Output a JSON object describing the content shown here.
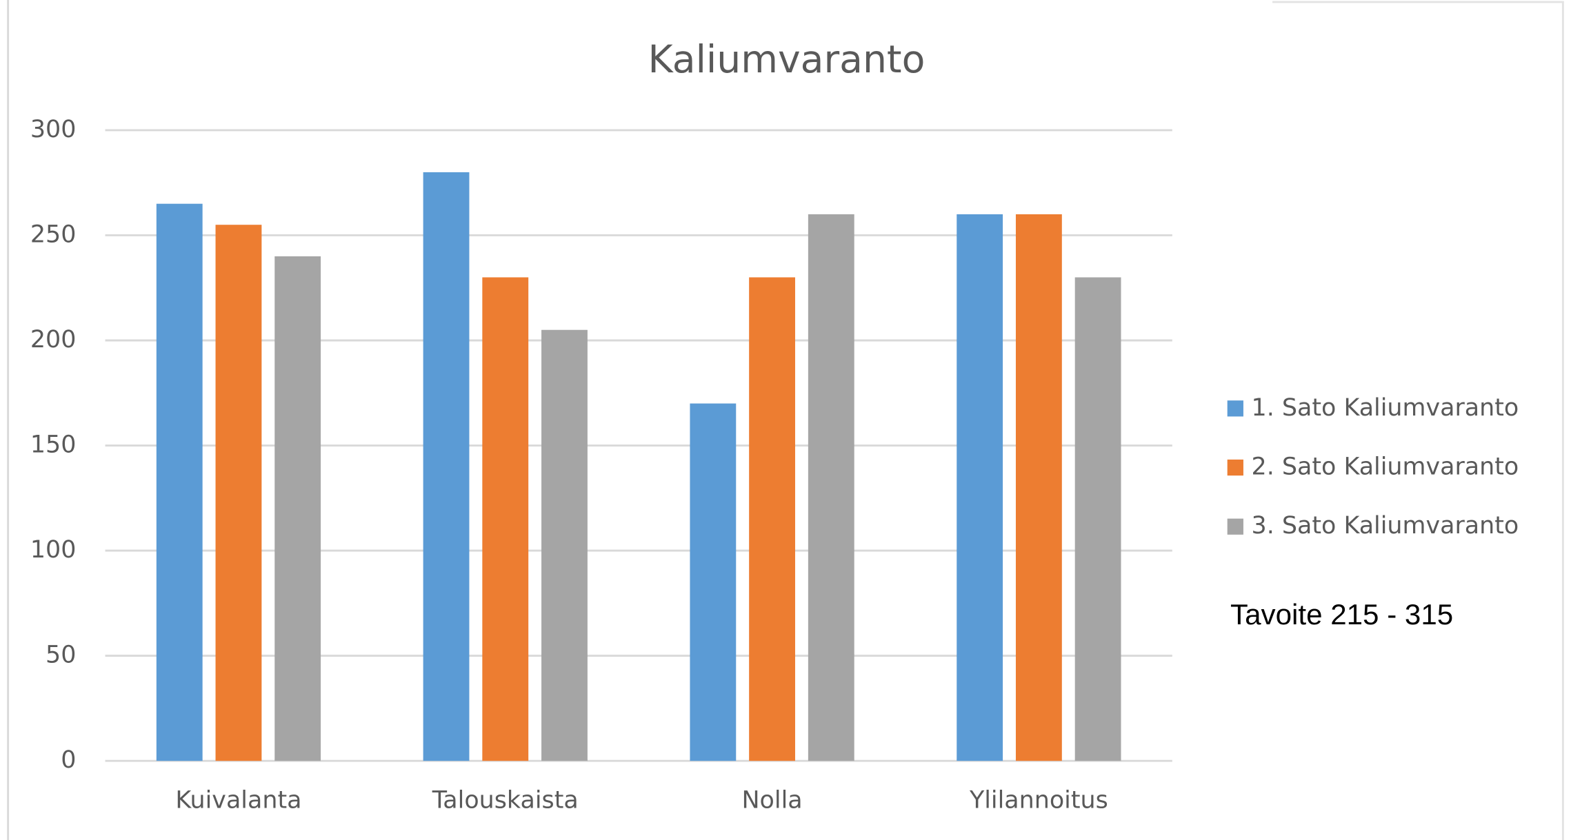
{
  "chart_data": {
    "type": "bar",
    "title": "Kaliumvaranto",
    "categories": [
      "Kuivalanta",
      "Talouskaista",
      "Nolla",
      "Ylilannoitus"
    ],
    "series": [
      {
        "name": "1. Sato Kaliumvaranto",
        "color": "#5b9bd5",
        "values": [
          265,
          280,
          170,
          260
        ]
      },
      {
        "name": "2. Sato Kaliumvaranto",
        "color": "#ed7d31",
        "values": [
          255,
          230,
          230,
          260
        ]
      },
      {
        "name": "3. Sato Kaliumvaranto",
        "color": "#a5a5a5",
        "values": [
          240,
          205,
          260,
          230
        ]
      }
    ],
    "ylim": [
      0,
      300
    ],
    "yticks": [
      0,
      50,
      100,
      150,
      200,
      250,
      300
    ],
    "grid": true,
    "legend": "right",
    "annotation": "Tavoite 215 - 315"
  }
}
